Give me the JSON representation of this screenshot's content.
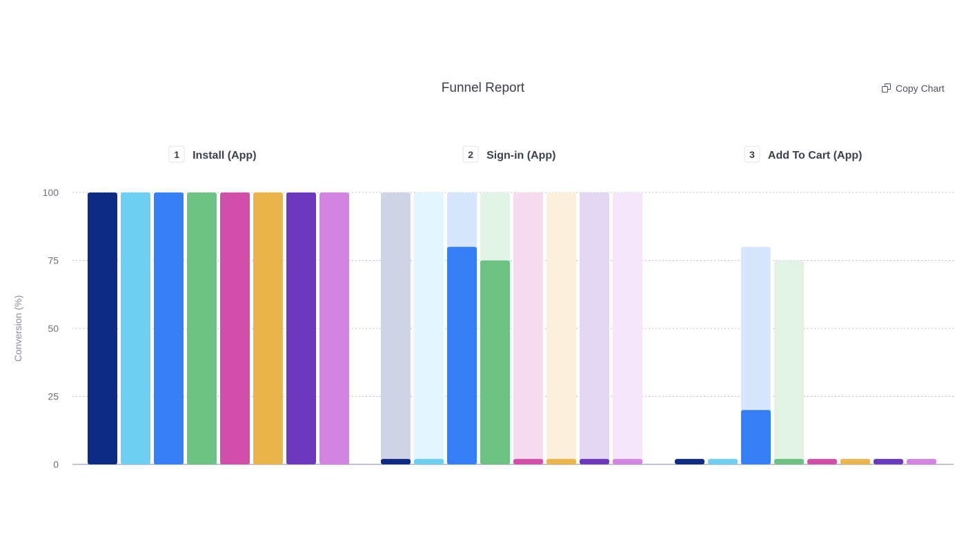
{
  "title": "Funnel Report",
  "copy_chart_label": "Copy Chart",
  "copy_icon": "copy-icon",
  "chart_data": {
    "type": "bar",
    "ylabel": "Conversion (%)",
    "ylim": [
      0,
      100
    ],
    "yticks": [
      0,
      25,
      50,
      75,
      100
    ],
    "grid": true,
    "steps": [
      {
        "number": "1",
        "name": "Install (App)"
      },
      {
        "number": "2",
        "name": "Sign-in (App)"
      },
      {
        "number": "3",
        "name": "Add To Cart (App)"
      }
    ],
    "colors": [
      "#0f2a83",
      "#6ecff0",
      "#367ef4",
      "#6cc183",
      "#d14fa9",
      "#ebb54e",
      "#6c39bd",
      "#d284e0"
    ],
    "series": [
      {
        "values": [
          100,
          2,
          2
        ]
      },
      {
        "values": [
          100,
          2,
          2
        ]
      },
      {
        "values": [
          100,
          80,
          20
        ]
      },
      {
        "values": [
          100,
          75,
          2
        ]
      },
      {
        "values": [
          100,
          2,
          2
        ]
      },
      {
        "values": [
          100,
          2,
          2
        ]
      },
      {
        "values": [
          100,
          2,
          2
        ]
      },
      {
        "values": [
          100,
          2,
          2
        ]
      }
    ]
  }
}
